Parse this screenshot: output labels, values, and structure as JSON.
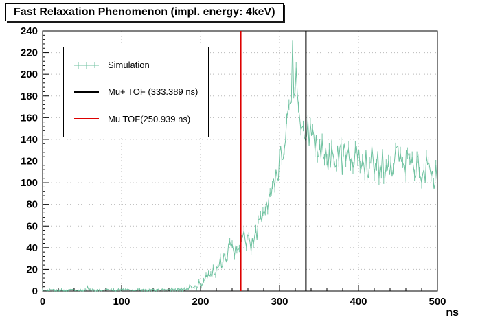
{
  "title": "Fast Relaxation Phenomenon (impl. energy: 4keV)",
  "axes": {
    "x": {
      "unit": "ns",
      "ticks": [
        0,
        100,
        200,
        300,
        400,
        500
      ],
      "min": 0,
      "max": 500,
      "minor_step": 20
    },
    "y": {
      "ticks": [
        0,
        20,
        40,
        60,
        80,
        100,
        120,
        140,
        160,
        180,
        200,
        220,
        240
      ],
      "min": 0,
      "max": 240,
      "minor_step": 4
    }
  },
  "legend": {
    "items": [
      {
        "label": "Simulation",
        "color": "#6fc2a0",
        "style": "errorbar"
      },
      {
        "label": "Mu+ TOF (333.389 ns)",
        "color": "#000000",
        "style": "line"
      },
      {
        "label": "Mu  TOF(250.939 ns)",
        "color": "#dd0000",
        "style": "line"
      }
    ]
  },
  "chart_data": {
    "type": "line",
    "title": "Fast Relaxation Phenomenon (impl. energy: 4keV)",
    "xlabel": "ns",
    "ylabel": "",
    "xlim": [
      0,
      500
    ],
    "ylim": [
      0,
      240
    ],
    "grid": true,
    "legend_position": "top-left",
    "series_name": "Simulation",
    "series_color": "#6fc2a0",
    "description": "Noisy simulated muonium time-of-flight histogram: counts ~0 until ~180 ns, small bump ~40 near 240-260 ns, steep rise from 270 ns to a peak ~190 (spike to ~231) near 315-320 ns, then relaxes to a fluctuating plateau around 120 counts out to 500 ns.",
    "sample_step": 1.5,
    "noise_seed": 20,
    "envelope": [
      [
        0,
        0.8,
        0.8
      ],
      [
        55,
        0.8,
        0.9
      ],
      [
        150,
        1,
        1
      ],
      [
        185,
        2.5,
        2
      ],
      [
        200,
        7,
        4
      ],
      [
        212,
        14,
        5
      ],
      [
        225,
        26,
        7
      ],
      [
        236,
        38,
        9
      ],
      [
        247,
        37,
        8
      ],
      [
        255,
        47,
        9
      ],
      [
        263,
        43,
        8
      ],
      [
        272,
        57,
        10
      ],
      [
        282,
        72,
        11
      ],
      [
        291,
        90,
        11
      ],
      [
        298,
        110,
        12
      ],
      [
        304,
        130,
        13
      ],
      [
        310,
        155,
        14
      ],
      [
        315,
        170,
        14
      ],
      [
        320,
        176,
        15
      ],
      [
        326,
        163,
        14
      ],
      [
        333,
        149,
        13
      ],
      [
        340,
        141,
        14
      ],
      [
        352,
        130,
        15
      ],
      [
        365,
        125,
        16
      ],
      [
        385,
        121,
        16
      ],
      [
        405,
        121,
        16
      ],
      [
        425,
        118,
        16
      ],
      [
        445,
        121,
        16
      ],
      [
        465,
        117,
        15
      ],
      [
        482,
        112,
        15
      ],
      [
        492,
        108,
        14
      ],
      [
        500,
        103,
        14
      ]
    ],
    "spikes": [
      [
        57,
        4
      ],
      [
        317,
        231
      ],
      [
        321,
        206
      ]
    ],
    "vlines": [
      {
        "x": 333.389,
        "color": "#000000",
        "label": "Mu+ TOF (333.389 ns)"
      },
      {
        "x": 250.939,
        "color": "#dd0000",
        "label": "Mu TOF(250.939 ns)"
      }
    ]
  }
}
